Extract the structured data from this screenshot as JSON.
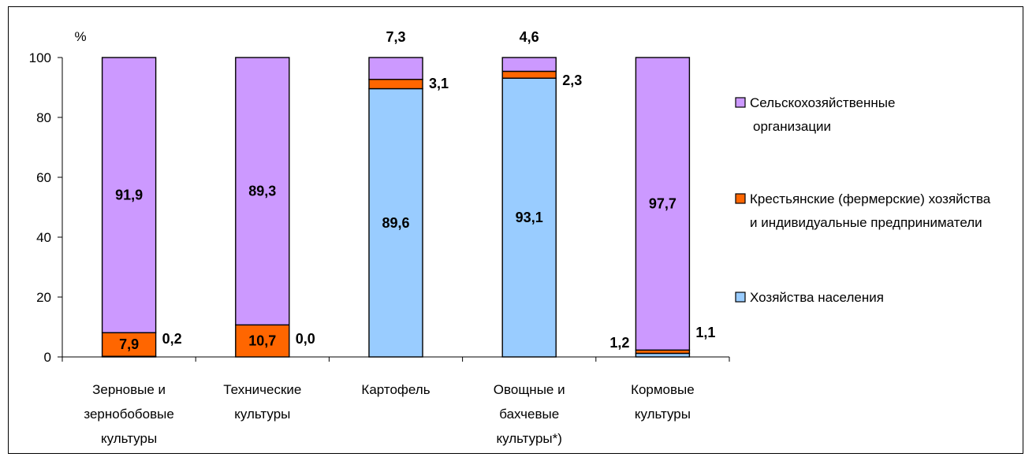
{
  "chart_data": {
    "type": "bar",
    "stacked": true,
    "unit_label": "%",
    "ylim": [
      0,
      100
    ],
    "yticks": [
      0,
      20,
      40,
      60,
      80,
      100
    ],
    "grid": false,
    "legend_position": "right",
    "categories": [
      [
        "Зерновые и",
        "зернобобовые",
        "культуры"
      ],
      [
        "Технические",
        "культуры"
      ],
      [
        "Картофель"
      ],
      [
        "Овощные и",
        "бахчевые",
        "культуры*)"
      ],
      [
        "Кормовые",
        "культуры"
      ]
    ],
    "series": [
      {
        "name": "Хозяйства населения",
        "color": "#99CCFF",
        "values": [
          0.2,
          0.0,
          89.6,
          93.1,
          1.2
        ]
      },
      {
        "name": "Крестьянские (фермерские) хозяйства и индивидуальные предприниматели",
        "color": "#FF6600",
        "values": [
          7.9,
          10.7,
          3.1,
          2.3,
          1.1
        ]
      },
      {
        "name": "Сельскохозяйственные организации",
        "color": "#CC99FF",
        "values": [
          91.9,
          89.3,
          7.3,
          4.6,
          97.7
        ]
      }
    ],
    "labels": [
      {
        "cat": 0,
        "series": 2,
        "text": "91,9",
        "pos": "inside"
      },
      {
        "cat": 0,
        "series": 1,
        "text": "7,9",
        "pos": "inside"
      },
      {
        "cat": 0,
        "series": 0,
        "text": "0,2",
        "pos": "right"
      },
      {
        "cat": 1,
        "series": 2,
        "text": "89,3",
        "pos": "inside"
      },
      {
        "cat": 1,
        "series": 1,
        "text": "10,7",
        "pos": "inside"
      },
      {
        "cat": 1,
        "series": 0,
        "text": "0,0",
        "pos": "right"
      },
      {
        "cat": 2,
        "series": 2,
        "text": "7,3",
        "pos": "above"
      },
      {
        "cat": 2,
        "series": 1,
        "text": "3,1",
        "pos": "right"
      },
      {
        "cat": 2,
        "series": 0,
        "text": "89,6",
        "pos": "inside"
      },
      {
        "cat": 3,
        "series": 2,
        "text": "4,6",
        "pos": "above"
      },
      {
        "cat": 3,
        "series": 1,
        "text": "2,3",
        "pos": "right"
      },
      {
        "cat": 3,
        "series": 0,
        "text": "93,1",
        "pos": "inside"
      },
      {
        "cat": 4,
        "series": 2,
        "text": "97,7",
        "pos": "inside"
      },
      {
        "cat": 4,
        "series": 1,
        "text": "1,1",
        "pos": "right"
      },
      {
        "cat": 4,
        "series": 0,
        "text": "1,2",
        "pos": "left"
      }
    ],
    "legend": [
      {
        "series": 2,
        "lines": [
          "Сельскохозяйственные",
          "организации"
        ]
      },
      {
        "series": 1,
        "lines": [
          "Крестьянские (фермерские) хозяйства",
          "и индивидуальные предприниматели"
        ]
      },
      {
        "series": 0,
        "lines": [
          "Хозяйства населения"
        ]
      }
    ]
  }
}
